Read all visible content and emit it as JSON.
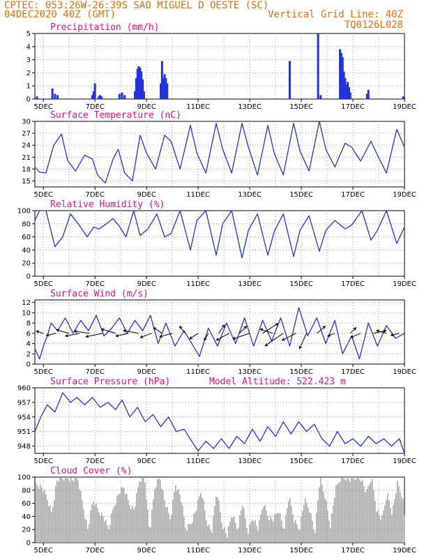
{
  "header": {
    "line1_left": "CPTEC:  053:26W-26:39S  SAO MIGUEL D OESTE (SC)",
    "line2_left": "04DEC2020 40Z (GMT)",
    "line2_right": "Vertical Grid Line: 40Z",
    "line3_right": "TQ0126L028"
  },
  "colors": {
    "header": "#e07010",
    "titles": "#e0108a",
    "series": "#2233dd",
    "cloud": "#aaaaaa",
    "grid": "#999999"
  },
  "chart_data": [
    {
      "type": "bar",
      "title": "Precipitation (mm/h)",
      "ylim": [
        0,
        5
      ],
      "yticks": [
        0,
        1,
        2,
        3,
        4,
        5
      ],
      "xticks": [
        "5DEC",
        "7DEC",
        "9DEC",
        "11DEC",
        "13DEC",
        "15DEC",
        "17DEC",
        "19DEC"
      ],
      "xlim_days": [
        4.67,
        19.0
      ],
      "x_days": [
        4.75,
        5.35,
        5.45,
        5.55,
        6.9,
        6.95,
        7.0,
        7.15,
        7.2,
        7.25,
        7.95,
        8.05,
        8.15,
        8.55,
        8.6,
        8.65,
        8.7,
        8.75,
        8.8,
        8.85,
        8.9,
        9.55,
        9.6,
        9.65,
        9.7,
        9.75,
        9.8,
        14.55,
        15.65,
        15.75,
        16.5,
        16.55,
        16.6,
        16.65,
        16.7,
        16.75,
        16.8,
        16.85,
        16.9,
        17.55,
        17.6,
        18.95
      ],
      "values": [
        0.2,
        0.8,
        0.4,
        0.3,
        0.3,
        0.6,
        1.2,
        0.2,
        0.3,
        0.2,
        0.4,
        0.5,
        0.3,
        0.6,
        1.6,
        2.3,
        2.5,
        2.4,
        2.1,
        1.5,
        0.6,
        1.2,
        2.9,
        1.6,
        1.9,
        1.6,
        1.2,
        2.9,
        5.0,
        0.3,
        3.8,
        3.5,
        3.2,
        2.1,
        1.6,
        1.1,
        1.3,
        0.9,
        0.5,
        0.4,
        0.7,
        0.2
      ]
    },
    {
      "type": "line",
      "title": "Surface Temperature (nC)",
      "ylim": [
        13.5,
        30
      ],
      "yticks": [
        15,
        18,
        21,
        24,
        27,
        30
      ],
      "xticks": [
        "5DEC",
        "7DEC",
        "9DEC",
        "11DEC",
        "13DEC",
        "15DEC",
        "17DEC",
        "19DEC"
      ],
      "x_days": [
        4.67,
        4.85,
        5.1,
        5.4,
        5.7,
        5.95,
        6.25,
        6.6,
        6.9,
        7.1,
        7.4,
        7.7,
        7.9,
        8.15,
        8.45,
        8.75,
        9.0,
        9.35,
        9.7,
        9.95,
        10.3,
        10.7,
        10.95,
        11.3,
        11.7,
        11.95,
        12.3,
        12.7,
        12.95,
        13.3,
        13.7,
        13.95,
        14.3,
        14.7,
        14.95,
        15.3,
        15.7,
        15.95,
        16.3,
        16.7,
        16.95,
        17.3,
        17.7,
        17.95,
        18.3,
        18.7,
        19.0
      ],
      "values": [
        18.5,
        17.2,
        17.0,
        24.0,
        26.8,
        20.0,
        17.5,
        21.5,
        20.5,
        16.5,
        14.5,
        20.5,
        23.0,
        17.0,
        15.0,
        26.5,
        22.0,
        18.0,
        26.5,
        25.0,
        18.0,
        29.0,
        22.0,
        17.0,
        29.5,
        23.0,
        17.0,
        29.5,
        23.5,
        16.5,
        29.0,
        22.0,
        16.5,
        29.5,
        22.5,
        17.5,
        30.0,
        23.0,
        18.5,
        24.5,
        23.5,
        20.0,
        25.0,
        21.5,
        17.0,
        28.0,
        23.5
      ]
    },
    {
      "type": "line",
      "title": "Relative Humidity (%)",
      "ylim": [
        0,
        100
      ],
      "yticks": [
        0,
        20,
        40,
        60,
        80,
        100
      ],
      "xticks": [
        "5DEC",
        "7DEC",
        "9DEC",
        "11DEC",
        "13DEC",
        "15DEC",
        "17DEC",
        "19DEC"
      ],
      "x_days": [
        4.67,
        4.85,
        5.1,
        5.45,
        5.75,
        6.05,
        6.35,
        6.7,
        6.95,
        7.15,
        7.45,
        7.7,
        7.95,
        8.2,
        8.5,
        8.75,
        9.05,
        9.4,
        9.7,
        9.95,
        10.3,
        10.7,
        10.95,
        11.3,
        11.7,
        11.95,
        12.3,
        12.7,
        12.95,
        13.3,
        13.7,
        13.95,
        14.3,
        14.7,
        14.95,
        15.3,
        15.7,
        15.95,
        16.3,
        16.7,
        16.95,
        17.35,
        17.7,
        17.95,
        18.3,
        18.7,
        19.0
      ],
      "values": [
        85,
        100,
        100,
        45,
        60,
        95,
        80,
        60,
        75,
        72,
        80,
        88,
        76,
        60,
        100,
        62,
        72,
        95,
        60,
        65,
        100,
        40,
        85,
        100,
        32,
        80,
        100,
        28,
        70,
        95,
        32,
        68,
        95,
        30,
        70,
        92,
        38,
        70,
        85,
        72,
        78,
        100,
        55,
        70,
        100,
        50,
        75
      ]
    },
    {
      "type": "line",
      "title": "Surface Wind (m/s)",
      "ylim": [
        0,
        12.5
      ],
      "yticks": [
        0,
        2,
        4,
        6,
        8,
        10,
        12
      ],
      "xticks": [
        "5DEC",
        "7DEC",
        "9DEC",
        "11DEC",
        "13DEC",
        "15DEC",
        "17DEC",
        "19DEC"
      ],
      "x_days": [
        4.67,
        4.85,
        5.0,
        5.15,
        5.3,
        5.55,
        5.85,
        6.15,
        6.45,
        6.75,
        7.05,
        7.35,
        7.65,
        7.95,
        8.25,
        8.55,
        8.85,
        9.15,
        9.45,
        9.75,
        10.1,
        10.45,
        10.75,
        11.05,
        11.4,
        11.75,
        12.1,
        12.45,
        12.8,
        13.15,
        13.5,
        13.85,
        14.2,
        14.55,
        14.9,
        15.25,
        15.6,
        15.95,
        16.3,
        16.6,
        16.95,
        17.25,
        17.6,
        17.95,
        18.3,
        18.65,
        19.0
      ],
      "values": [
        3.0,
        1.0,
        3.5,
        5.5,
        8.0,
        6.5,
        9.0,
        6.0,
        8.5,
        6.5,
        9.5,
        5.5,
        7.0,
        9.0,
        6.0,
        8.5,
        6.5,
        9.5,
        4.0,
        8.0,
        3.5,
        6.5,
        4.0,
        1.5,
        7.0,
        3.5,
        8.0,
        4.0,
        9.0,
        3.5,
        8.5,
        4.5,
        9.0,
        3.5,
        11.0,
        5.5,
        9.0,
        4.0,
        8.5,
        2.0,
        5.5,
        1.0,
        8.0,
        3.5,
        7.5,
        5.0,
        6.0
      ],
      "arrows": [
        {
          "day": 5.0,
          "dx": -10,
          "dy": -3
        },
        {
          "day": 5.5,
          "dx": -14,
          "dy": 3
        },
        {
          "day": 6.0,
          "dx": -18,
          "dy": -5
        },
        {
          "day": 6.4,
          "dx": -20,
          "dy": 4
        },
        {
          "day": 6.8,
          "dx": -22,
          "dy": -3
        },
        {
          "day": 7.3,
          "dx": -24,
          "dy": 5
        },
        {
          "day": 7.8,
          "dx": -20,
          "dy": -6
        },
        {
          "day": 8.3,
          "dx": -18,
          "dy": 4
        },
        {
          "day": 8.7,
          "dx": -22,
          "dy": -4
        },
        {
          "day": 9.2,
          "dx": -16,
          "dy": 6
        },
        {
          "day": 9.6,
          "dx": -12,
          "dy": -8
        },
        {
          "day": 10.0,
          "dx": -18,
          "dy": 5
        },
        {
          "day": 10.5,
          "dx": -8,
          "dy": -10
        },
        {
          "day": 11.0,
          "dx": -12,
          "dy": 8
        },
        {
          "day": 11.4,
          "dx": -6,
          "dy": 10
        },
        {
          "day": 11.8,
          "dx": 8,
          "dy": -12
        },
        {
          "day": 12.2,
          "dx": -18,
          "dy": 10
        },
        {
          "day": 12.6,
          "dx": 10,
          "dy": -10
        },
        {
          "day": 13.0,
          "dx": -24,
          "dy": 8
        },
        {
          "day": 13.5,
          "dx": 22,
          "dy": -14
        },
        {
          "day": 13.9,
          "dx": -18,
          "dy": -6
        },
        {
          "day": 14.3,
          "dx": -26,
          "dy": 18
        },
        {
          "day": 14.8,
          "dx": -20,
          "dy": 10
        },
        {
          "day": 15.2,
          "dx": -10,
          "dy": 22
        },
        {
          "day": 15.6,
          "dx": 12,
          "dy": -10
        },
        {
          "day": 16.3,
          "dx": -10,
          "dy": 4
        },
        {
          "day": 16.9,
          "dx": 8,
          "dy": -8
        },
        {
          "day": 17.3,
          "dx": -14,
          "dy": 6
        },
        {
          "day": 17.8,
          "dx": 18,
          "dy": -4
        },
        {
          "day": 18.3,
          "dx": -14,
          "dy": -4
        },
        {
          "day": 18.8,
          "dx": -12,
          "dy": 3
        }
      ]
    },
    {
      "type": "line",
      "title": "Surface Pressure (hPa)",
      "annotation": "Model Altitude: 522.423 m",
      "ylim": [
        946.5,
        960
      ],
      "yticks": [
        948,
        951,
        954,
        957,
        960
      ],
      "yticklabels": [
        "948",
        "951",
        "954",
        "957",
        "960"
      ],
      "xticks": [
        "5DEC",
        "7DEC",
        "9DEC",
        "11DEC",
        "13DEC",
        "15DEC",
        "17DEC",
        "19DEC"
      ],
      "x_days": [
        4.67,
        4.9,
        5.15,
        5.45,
        5.75,
        6.05,
        6.3,
        6.6,
        6.9,
        7.2,
        7.5,
        7.8,
        8.05,
        8.35,
        8.65,
        8.95,
        9.25,
        9.55,
        9.85,
        10.15,
        10.45,
        10.75,
        11.0,
        11.3,
        11.6,
        11.9,
        12.2,
        12.5,
        12.8,
        13.1,
        13.4,
        13.7,
        14.0,
        14.3,
        14.6,
        14.9,
        15.2,
        15.5,
        15.8,
        16.1,
        16.4,
        16.7,
        17.0,
        17.3,
        17.6,
        17.9,
        18.2,
        18.5,
        18.8,
        19.0
      ],
      "values": [
        951.0,
        954.0,
        956.5,
        955.0,
        959.0,
        957.0,
        958.0,
        956.5,
        958.0,
        956.0,
        957.0,
        955.5,
        957.5,
        954.0,
        956.0,
        953.0,
        954.5,
        952.0,
        954.0,
        951.0,
        951.5,
        949.0,
        947.0,
        949.0,
        947.5,
        949.5,
        947.5,
        950.0,
        948.5,
        951.5,
        949.0,
        952.0,
        950.0,
        953.0,
        950.5,
        953.0,
        951.0,
        952.5,
        949.5,
        948.0,
        951.0,
        948.5,
        949.5,
        948.0,
        950.0,
        948.5,
        949.5,
        948.0,
        949.5,
        946.5
      ]
    },
    {
      "type": "area",
      "title": "Cloud Cover (%)",
      "ylim": [
        0,
        100
      ],
      "yticks": [
        0,
        20,
        40,
        60,
        80,
        100
      ],
      "xticks": [
        "5DEC",
        "7DEC",
        "9DEC",
        "11DEC",
        "13DEC",
        "15DEC",
        "17DEC",
        "19DEC"
      ],
      "x_days": [
        4.67,
        4.9,
        5.1,
        5.3,
        5.5,
        5.7,
        5.9,
        6.1,
        6.3,
        6.5,
        6.7,
        6.9,
        7.1,
        7.3,
        7.5,
        7.7,
        7.9,
        8.1,
        8.3,
        8.5,
        8.7,
        8.9,
        9.1,
        9.3,
        9.5,
        9.7,
        9.9,
        10.1,
        10.3,
        10.5,
        10.7,
        10.9,
        11.1,
        11.3,
        11.5,
        11.7,
        11.9,
        12.1,
        12.3,
        12.5,
        12.7,
        12.9,
        13.1,
        13.3,
        13.5,
        13.7,
        13.9,
        14.1,
        14.3,
        14.5,
        14.7,
        14.9,
        15.1,
        15.3,
        15.5,
        15.7,
        15.9,
        16.1,
        16.3,
        16.5,
        16.7,
        16.9,
        17.1,
        17.3,
        17.5,
        17.7,
        17.9,
        18.1,
        18.3,
        18.5,
        18.7,
        18.9,
        19.0
      ],
      "values": [
        90,
        85,
        70,
        45,
        95,
        98,
        100,
        95,
        100,
        60,
        20,
        65,
        50,
        40,
        20,
        55,
        75,
        85,
        60,
        50,
        95,
        100,
        15,
        85,
        100,
        60,
        35,
        90,
        70,
        20,
        30,
        50,
        80,
        35,
        15,
        80,
        30,
        10,
        45,
        20,
        60,
        15,
        40,
        20,
        60,
        40,
        35,
        50,
        20,
        70,
        35,
        20,
        65,
        50,
        15,
        98,
        70,
        25,
        80,
        98,
        100,
        95,
        100,
        98,
        75,
        100,
        50,
        35,
        75,
        45,
        90,
        70,
        30
      ]
    }
  ]
}
